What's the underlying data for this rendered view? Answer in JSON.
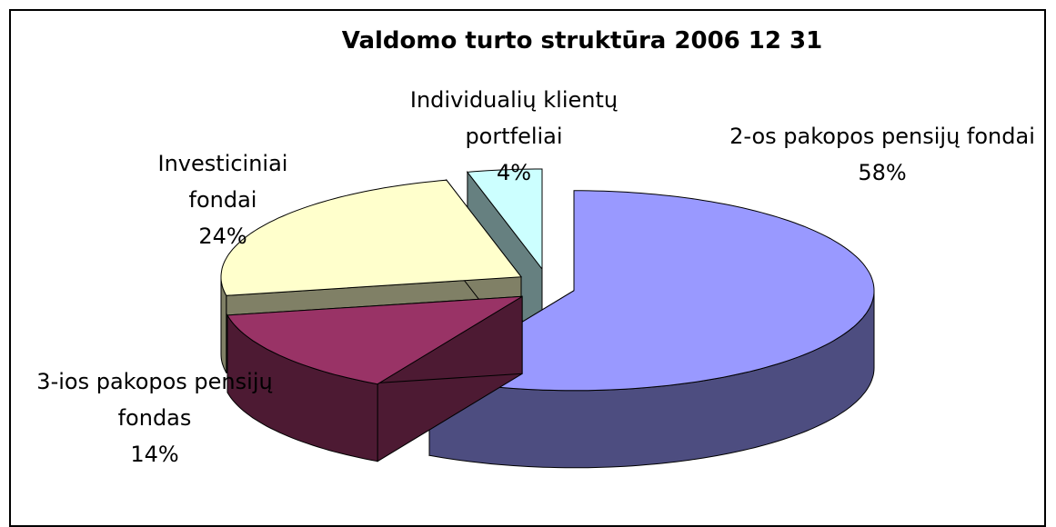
{
  "chart_data": {
    "type": "pie3d",
    "title": "Valdomo turto struktūra 2006 12 31",
    "categories": [
      "2-os pakopos pensijų fondai",
      "3-ios pakopos pensijų fondas",
      "Investiciniai fondai",
      "Individualių klientų portfeliai"
    ],
    "values": [
      58,
      14,
      24,
      4
    ],
    "value_labels": [
      "58%",
      "14%",
      "24%",
      "4%"
    ],
    "colors": [
      "#9999ff",
      "#993366",
      "#ffffcc",
      "#ccffff"
    ]
  }
}
